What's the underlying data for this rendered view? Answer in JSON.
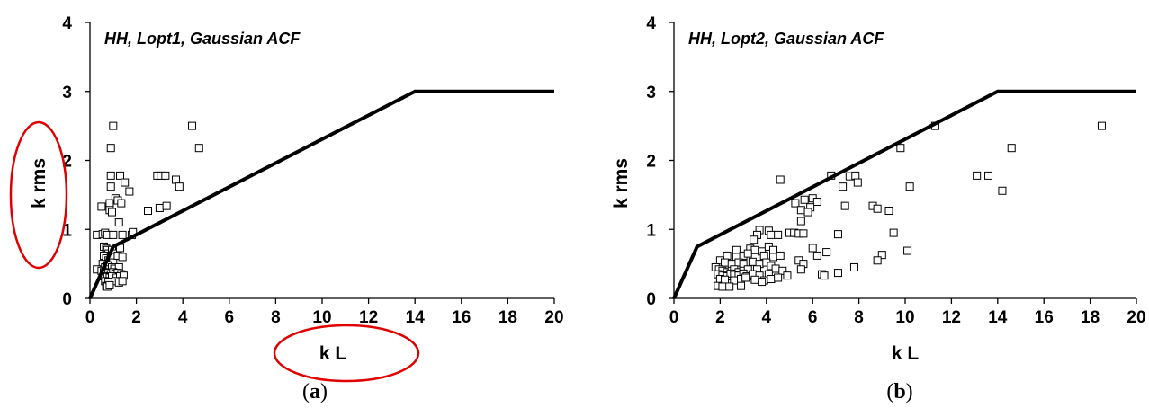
{
  "chart_data": [
    {
      "type": "scatter",
      "title": "HH, Lopt1, Gaussian ACF",
      "xlabel": "k L",
      "ylabel": "k rms",
      "caption": {
        "open": "(",
        "letter": "a",
        "close": ")"
      },
      "xlim": [
        0,
        20
      ],
      "ylim": [
        0,
        4
      ],
      "xticks": [
        "0",
        "2",
        "4",
        "6",
        "8",
        "10",
        "12",
        "14",
        "16",
        "18",
        "20"
      ],
      "yticks": [
        "0",
        "1",
        "2",
        "3",
        "4"
      ],
      "grid": false,
      "annotations": [
        "red ellipse around y-axis label",
        "red ellipse around x-axis label"
      ],
      "annotation_color": "#e00000",
      "boundary_line": {
        "x": [
          0,
          1,
          14,
          20
        ],
        "y": [
          0,
          0.75,
          3,
          3
        ]
      },
      "points": [
        [
          1.0,
          2.5
        ],
        [
          0.9,
          2.18
        ],
        [
          4.4,
          2.5
        ],
        [
          4.7,
          2.18
        ],
        [
          0.9,
          1.78
        ],
        [
          1.3,
          1.78
        ],
        [
          1.5,
          1.68
        ],
        [
          1.7,
          1.55
        ],
        [
          0.9,
          1.62
        ],
        [
          2.9,
          1.78
        ],
        [
          3.05,
          1.78
        ],
        [
          3.25,
          1.78
        ],
        [
          3.7,
          1.72
        ],
        [
          3.85,
          1.62
        ],
        [
          1.1,
          1.45
        ],
        [
          1.2,
          1.42
        ],
        [
          1.35,
          1.38
        ],
        [
          0.85,
          1.38
        ],
        [
          0.5,
          1.33
        ],
        [
          0.85,
          1.28
        ],
        [
          0.95,
          1.25
        ],
        [
          2.5,
          1.27
        ],
        [
          3.0,
          1.31
        ],
        [
          3.3,
          1.34
        ],
        [
          1.25,
          1.1
        ],
        [
          0.3,
          0.92
        ],
        [
          0.55,
          0.93
        ],
        [
          0.65,
          0.95
        ],
        [
          0.75,
          0.92
        ],
        [
          1.0,
          0.92
        ],
        [
          1.4,
          0.92
        ],
        [
          1.8,
          0.92
        ],
        [
          1.85,
          0.96
        ],
        [
          0.6,
          0.75
        ],
        [
          0.7,
          0.72
        ],
        [
          0.75,
          0.7
        ],
        [
          0.8,
          0.65
        ],
        [
          0.95,
          0.7
        ],
        [
          1.05,
          0.65
        ],
        [
          1.3,
          0.73
        ],
        [
          0.6,
          0.62
        ],
        [
          0.7,
          0.58
        ],
        [
          0.8,
          0.55
        ],
        [
          0.9,
          0.6
        ],
        [
          1.0,
          0.52
        ],
        [
          1.2,
          0.62
        ],
        [
          1.4,
          0.6
        ],
        [
          0.55,
          0.5
        ],
        [
          0.65,
          0.45
        ],
        [
          0.75,
          0.48
        ],
        [
          0.85,
          0.42
        ],
        [
          0.95,
          0.45
        ],
        [
          1.05,
          0.43
        ],
        [
          1.25,
          0.45
        ],
        [
          0.3,
          0.42
        ],
        [
          0.5,
          0.4
        ],
        [
          0.6,
          0.38
        ],
        [
          0.7,
          0.36
        ],
        [
          0.8,
          0.37
        ],
        [
          0.9,
          0.35
        ],
        [
          1.0,
          0.38
        ],
        [
          1.1,
          0.36
        ],
        [
          1.2,
          0.37
        ],
        [
          1.35,
          0.35
        ],
        [
          0.6,
          0.32
        ],
        [
          0.75,
          0.31
        ],
        [
          0.85,
          0.3
        ],
        [
          0.95,
          0.32
        ],
        [
          1.15,
          0.3
        ],
        [
          1.3,
          0.32
        ],
        [
          1.45,
          0.33
        ],
        [
          0.65,
          0.25
        ],
        [
          0.8,
          0.24
        ],
        [
          1.1,
          0.25
        ],
        [
          1.25,
          0.23
        ],
        [
          1.4,
          0.25
        ],
        [
          0.7,
          0.18
        ],
        [
          0.75,
          0.17
        ],
        [
          0.85,
          0.19
        ]
      ]
    },
    {
      "type": "scatter",
      "title": "HH, Lopt2, Gaussian ACF",
      "xlabel": "k L",
      "ylabel": "k rms",
      "caption": {
        "open": "(",
        "letter": "b",
        "close": ")"
      },
      "xlim": [
        0,
        20
      ],
      "ylim": [
        0,
        4
      ],
      "xticks": [
        "0",
        "2",
        "4",
        "6",
        "8",
        "10",
        "12",
        "14",
        "16",
        "18",
        "20"
      ],
      "yticks": [
        "0",
        "1",
        "2",
        "3",
        "4"
      ],
      "grid": false,
      "boundary_line": {
        "x": [
          0,
          1,
          14,
          20
        ],
        "y": [
          0,
          0.75,
          3,
          3
        ]
      },
      "points": [
        [
          11.3,
          2.5
        ],
        [
          18.5,
          2.5
        ],
        [
          9.8,
          2.18
        ],
        [
          14.6,
          2.18
        ],
        [
          13.1,
          1.78
        ],
        [
          13.6,
          1.78
        ],
        [
          6.8,
          1.78
        ],
        [
          7.6,
          1.77
        ],
        [
          7.85,
          1.78
        ],
        [
          4.6,
          1.72
        ],
        [
          7.95,
          1.68
        ],
        [
          7.3,
          1.62
        ],
        [
          10.2,
          1.62
        ],
        [
          14.2,
          1.56
        ],
        [
          6.0,
          1.45
        ],
        [
          6.2,
          1.4
        ],
        [
          5.65,
          1.43
        ],
        [
          5.25,
          1.38
        ],
        [
          5.9,
          1.32
        ],
        [
          5.5,
          1.28
        ],
        [
          5.8,
          1.25
        ],
        [
          7.4,
          1.34
        ],
        [
          8.6,
          1.34
        ],
        [
          8.8,
          1.3
        ],
        [
          9.3,
          1.27
        ],
        [
          5.5,
          1.12
        ],
        [
          3.7,
          0.99
        ],
        [
          4.1,
          0.98
        ],
        [
          5.0,
          0.95
        ],
        [
          5.2,
          0.95
        ],
        [
          5.4,
          0.94
        ],
        [
          5.6,
          0.94
        ],
        [
          4.2,
          0.92
        ],
        [
          4.5,
          0.92
        ],
        [
          3.6,
          0.92
        ],
        [
          3.45,
          0.85
        ],
        [
          7.1,
          0.93
        ],
        [
          9.5,
          0.95
        ],
        [
          6.0,
          0.73
        ],
        [
          6.6,
          0.67
        ],
        [
          10.1,
          0.69
        ],
        [
          2.7,
          0.7
        ],
        [
          3.3,
          0.72
        ],
        [
          3.5,
          0.7
        ],
        [
          3.8,
          0.68
        ],
        [
          4.1,
          0.75
        ],
        [
          4.3,
          0.7
        ],
        [
          2.3,
          0.62
        ],
        [
          2.7,
          0.6
        ],
        [
          3.0,
          0.62
        ],
        [
          3.2,
          0.65
        ],
        [
          3.9,
          0.62
        ],
        [
          4.3,
          0.6
        ],
        [
          4.6,
          0.62
        ],
        [
          6.2,
          0.62
        ],
        [
          5.4,
          0.55
        ],
        [
          5.6,
          0.5
        ],
        [
          9.0,
          0.63
        ],
        [
          8.8,
          0.55
        ],
        [
          2.0,
          0.55
        ],
        [
          2.2,
          0.52
        ],
        [
          2.5,
          0.5
        ],
        [
          2.8,
          0.52
        ],
        [
          3.0,
          0.5
        ],
        [
          3.4,
          0.53
        ],
        [
          3.7,
          0.5
        ],
        [
          4.0,
          0.52
        ],
        [
          4.2,
          0.47
        ],
        [
          7.8,
          0.45
        ],
        [
          1.8,
          0.45
        ],
        [
          1.95,
          0.42
        ],
        [
          2.1,
          0.4
        ],
        [
          2.3,
          0.38
        ],
        [
          2.5,
          0.4
        ],
        [
          2.6,
          0.42
        ],
        [
          2.8,
          0.38
        ],
        [
          3.0,
          0.4
        ],
        [
          3.2,
          0.42
        ],
        [
          3.6,
          0.42
        ],
        [
          4.4,
          0.43
        ],
        [
          4.7,
          0.4
        ],
        [
          5.5,
          0.42
        ],
        [
          1.9,
          0.35
        ],
        [
          2.1,
          0.33
        ],
        [
          2.3,
          0.32
        ],
        [
          2.45,
          0.36
        ],
        [
          2.6,
          0.34
        ],
        [
          2.8,
          0.33
        ],
        [
          3.0,
          0.36
        ],
        [
          3.15,
          0.32
        ],
        [
          3.4,
          0.35
        ],
        [
          3.7,
          0.33
        ],
        [
          4.1,
          0.35
        ],
        [
          4.9,
          0.33
        ],
        [
          6.4,
          0.35
        ],
        [
          6.5,
          0.33
        ],
        [
          7.1,
          0.37
        ],
        [
          2.0,
          0.28
        ],
        [
          2.2,
          0.27
        ],
        [
          2.6,
          0.26
        ],
        [
          2.9,
          0.28
        ],
        [
          3.1,
          0.3
        ],
        [
          3.5,
          0.27
        ],
        [
          3.9,
          0.26
        ],
        [
          4.2,
          0.28
        ],
        [
          4.5,
          0.3
        ],
        [
          3.8,
          0.24
        ],
        [
          1.9,
          0.18
        ],
        [
          2.1,
          0.17
        ],
        [
          2.4,
          0.17
        ],
        [
          2.9,
          0.18
        ]
      ]
    }
  ]
}
